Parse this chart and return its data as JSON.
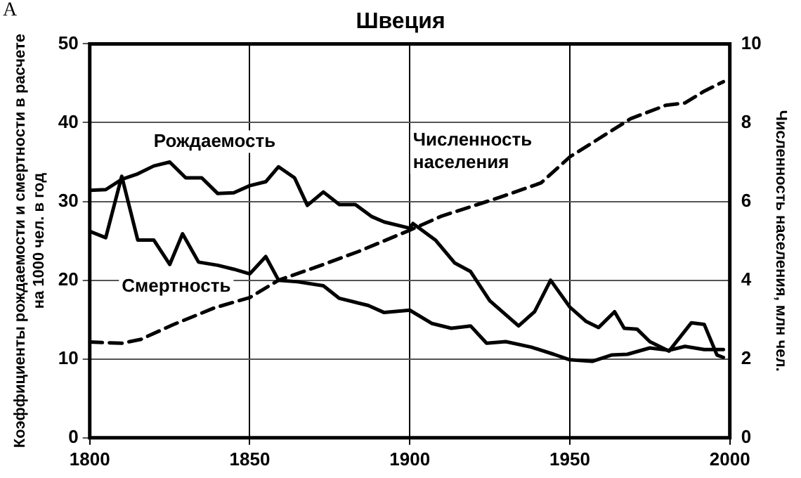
{
  "chart_data": {
    "type": "line",
    "title": "Швеция",
    "annotations": [
      "A"
    ],
    "ylabel": "Коэффициенты рождаемости и смертности в расчете на 1000 чел. в год",
    "y2label": "Численность населения, млн чел.",
    "xlim": [
      1800,
      2000
    ],
    "xticks": [
      1800,
      1850,
      1900,
      1950,
      2000
    ],
    "ylim": [
      0,
      50
    ],
    "yticks": [
      0,
      10,
      20,
      30,
      40,
      50
    ],
    "y2lim": [
      0,
      10
    ],
    "y2ticks": [
      0,
      2,
      4,
      6,
      8,
      10
    ],
    "grid": true,
    "legend": false,
    "marker": "none",
    "series": [
      {
        "name": "Рождаемость",
        "color": "#000000",
        "line_style": "solid",
        "x": [
          1800,
          1805,
          1810,
          1815,
          1820,
          1825,
          1830,
          1835,
          1840,
          1845,
          1850,
          1855,
          1859,
          1864,
          1868,
          1873,
          1878,
          1883,
          1888,
          1892,
          1900,
          1901,
          1908,
          1914,
          1919,
          1925,
          1934,
          1939,
          1944,
          1950,
          1955,
          1959,
          1964,
          1967,
          1971,
          1975,
          1981,
          1988,
          1992,
          1996,
          1998
        ],
        "values": [
          31.4,
          31.5,
          32.8,
          33.5,
          34.5,
          35,
          33,
          33,
          31,
          31.1,
          32,
          32.5,
          34.4,
          33,
          29.5,
          31.2,
          29.6,
          29.6,
          28.1,
          27.4,
          26.6,
          27.2,
          25.1,
          22.2,
          21.1,
          17.4,
          14.2,
          16,
          20,
          16.6,
          14.8,
          14,
          16,
          13.9,
          13.8,
          12.2,
          11,
          14.6,
          14.4,
          10.5,
          10.2
        ]
      },
      {
        "name": "Смертность",
        "color": "#000000",
        "line_style": "solid",
        "x": [
          1800,
          1805,
          1810,
          1815,
          1820,
          1825,
          1829,
          1834,
          1840,
          1845,
          1850,
          1855,
          1859,
          1865,
          1873,
          1878,
          1883,
          1887,
          1892,
          1900,
          1907,
          1913,
          1919,
          1924,
          1930,
          1938,
          1945,
          1950,
          1957,
          1963,
          1968,
          1975,
          1981,
          1986,
          1992,
          1998
        ],
        "values": [
          26.2,
          25.4,
          33.2,
          25.1,
          25.1,
          22,
          25.9,
          22.3,
          21.9,
          21.4,
          20.8,
          23,
          20,
          19.8,
          19.3,
          17.7,
          17.2,
          16.8,
          15.9,
          16.2,
          14.5,
          13.9,
          14.2,
          12,
          12.2,
          11.5,
          10.6,
          9.9,
          9.7,
          10.5,
          10.6,
          11.4,
          11.1,
          11.6,
          11.2,
          11.2
        ]
      },
      {
        "name": "Численность населения",
        "color": "#000000",
        "line_style": "dashed",
        "axis": "y2",
        "x": [
          1800,
          1810,
          1816,
          1826,
          1839,
          1850,
          1859,
          1872,
          1884,
          1900,
          1910,
          1928,
          1941,
          1950,
          1969,
          1980,
          1986,
          1992,
          1998
        ],
        "values": [
          2.43,
          2.4,
          2.5,
          2.87,
          3.3,
          3.56,
          4.0,
          4.37,
          4.73,
          5.27,
          5.63,
          6.1,
          6.47,
          7.13,
          8.1,
          8.44,
          8.5,
          8.8,
          9.04
        ]
      }
    ]
  }
}
